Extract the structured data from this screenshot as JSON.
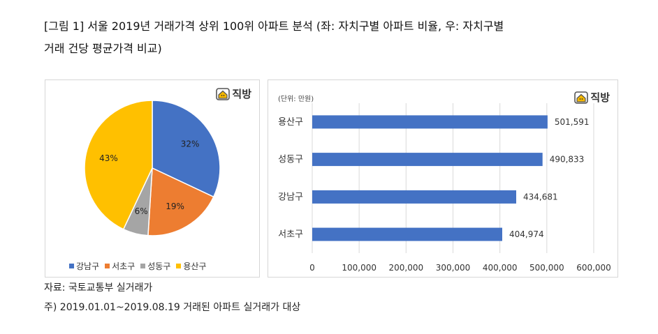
{
  "captions": {
    "line1": "[그림 1] 서울 2019년 거래가격 상위 100위 아파트 분석 (좌: 자치구별 아파트 비율, 우: 자치구별",
    "line2": "거래 건당 평균가격 비교)"
  },
  "brand": "직방",
  "footnotes": {
    "source": "자료: 국토교통부 실거래가",
    "note": "주) 2019.01.01~2019.08.19 거래된 아파트 실거래가 대상"
  },
  "chart_data": [
    {
      "type": "pie",
      "categories": [
        "강남구",
        "서초구",
        "성동구",
        "용산구"
      ],
      "values": [
        32,
        19,
        6,
        43
      ],
      "labels": [
        "32%",
        "19%",
        "6%",
        "43%"
      ],
      "colors": [
        "#4472c4",
        "#ed7d31",
        "#a5a5a5",
        "#ffc000"
      ],
      "legend_position": "bottom"
    },
    {
      "type": "bar",
      "orientation": "horizontal",
      "unit_label": "(단위: 만원)",
      "categories": [
        "용산구",
        "성동구",
        "강남구",
        "서초구"
      ],
      "values": [
        501591,
        490833,
        434681,
        404974
      ],
      "value_labels": [
        "501,591",
        "490,833",
        "434,681",
        "404,974"
      ],
      "xlim": [
        0,
        600000
      ],
      "xticks": [
        "0",
        "100,000",
        "200,000",
        "300,000",
        "400,000",
        "500,000",
        "600,000"
      ],
      "grid": true,
      "color": "#4472c4"
    }
  ]
}
